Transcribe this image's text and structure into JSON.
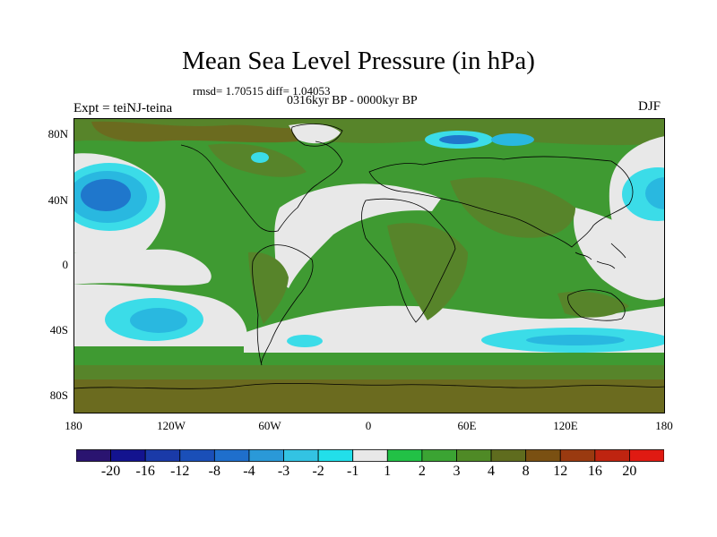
{
  "title": "Mean Sea Level Pressure (in hPa)",
  "stats": "rmsd= 1.70515 diff= 1.04053",
  "period": "0316kyr BP - 0000kyr BP",
  "experiment": "Expt = teiNJ-teina",
  "season": "DJF",
  "lat_labels": [
    "80N",
    "40N",
    "0",
    "40S",
    "80S"
  ],
  "lon_labels": [
    "180",
    "120W",
    "60W",
    "0",
    "60E",
    "120E",
    "180"
  ],
  "colorbar": {
    "labels": [
      "-20",
      "-16",
      "-12",
      "-8",
      "-4",
      "-3",
      "-2",
      "-1",
      "1",
      "2",
      "3",
      "4",
      "8",
      "12",
      "16",
      "20"
    ],
    "colors": [
      "#2a1470",
      "#13138f",
      "#1a3aa8",
      "#1a4fb8",
      "#1f6fcc",
      "#2a99d8",
      "#33c3e3",
      "#22dfea",
      "#e8e8e8",
      "#22c146",
      "#3ba433",
      "#4f8a26",
      "#5f6c1e",
      "#7a5012",
      "#9a3a10",
      "#bf2410",
      "#e01a12"
    ]
  },
  "map_colors": {
    "ocean_base": "#3f9a32",
    "near_zero": "#e8e8e8",
    "positive_mid": "#57842a",
    "positive_high": "#6b6b1f",
    "negative_small": "#3bdce8",
    "negative_mid": "#29b8e0",
    "negative_strong": "#1f77cc",
    "coastline": "#000000"
  }
}
